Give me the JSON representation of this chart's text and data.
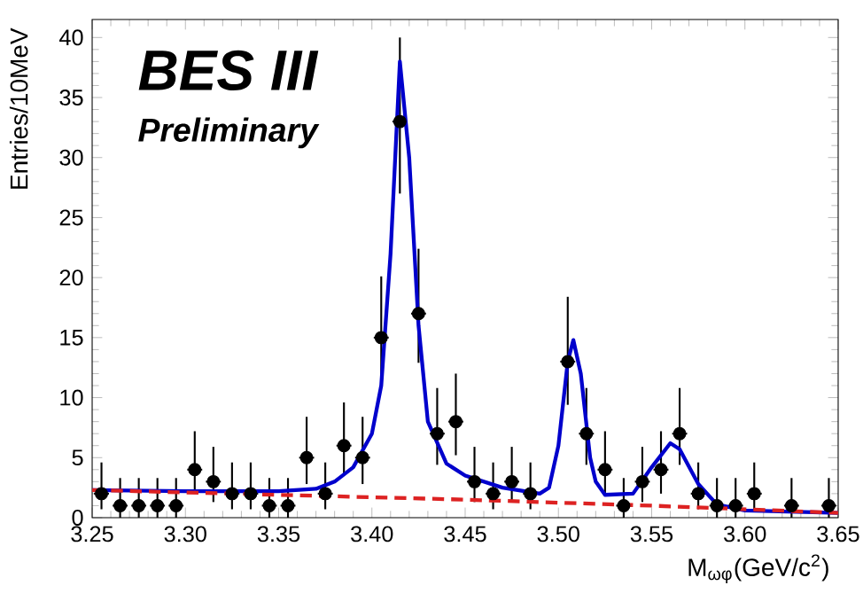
{
  "chart_data": {
    "type": "scatter",
    "xlabel": "M$_{ωφ}$(GeV/c$^{2}$)",
    "ylabel": "Entries/10MeV",
    "annotations": [
      "BES III",
      "Preliminary"
    ],
    "marker": "circle",
    "xlim": [
      3.25,
      3.65
    ],
    "ylim": [
      0,
      41.5
    ],
    "xticks": [
      3.25,
      {
        "value": 3.3,
        "label": "3.30"
      },
      3.35,
      {
        "value": 3.4,
        "label": "3.40"
      },
      3.45,
      {
        "value": 3.5,
        "label": "3.50"
      },
      3.55,
      {
        "value": 3.6,
        "label": "3.60"
      },
      3.65
    ],
    "yticks": [
      0,
      5,
      10,
      15,
      20,
      25,
      30,
      35,
      40
    ],
    "series": [
      {
        "color": "#000000",
        "x": [
          3.255,
          3.265,
          3.275,
          3.285,
          3.295,
          3.305,
          3.315,
          3.325,
          3.335,
          3.345,
          3.355,
          3.365,
          3.375,
          3.385,
          3.395,
          3.405,
          3.415,
          3.425,
          3.435,
          3.445,
          3.455,
          3.465,
          3.475,
          3.485,
          3.495,
          3.505,
          3.515,
          3.525,
          3.535,
          3.545,
          3.555,
          3.565,
          3.575,
          3.585,
          3.595,
          3.605,
          3.615,
          3.625,
          3.635,
          3.645
        ],
        "values": [
          2,
          1,
          1,
          1,
          1,
          4,
          3,
          2,
          2,
          1,
          1,
          5,
          2,
          6,
          5,
          15,
          33,
          17,
          7,
          8,
          3,
          2,
          3,
          2,
          null,
          13,
          7,
          4,
          1,
          3,
          4,
          7,
          2,
          1,
          1,
          2,
          null,
          1,
          null,
          1
        ],
        "errors": [
          [
            0.7,
            4.6
          ],
          [
            0,
            3.3
          ],
          [
            0,
            3.3
          ],
          [
            0,
            3.3
          ],
          [
            0,
            3.3
          ],
          [
            2,
            7.2
          ],
          [
            1.3,
            5.9
          ],
          [
            0.7,
            4.6
          ],
          [
            0.7,
            4.6
          ],
          [
            0,
            3.3
          ],
          [
            0,
            3.3
          ],
          [
            2.8,
            8.4
          ],
          [
            0.7,
            4.6
          ],
          [
            3.6,
            9.6
          ],
          [
            2.8,
            8.4
          ],
          [
            11.1,
            20.1
          ],
          [
            27,
            40
          ],
          [
            12.9,
            22.4
          ],
          [
            4.4,
            10.8
          ],
          [
            5.2,
            12
          ],
          [
            1.3,
            5.9
          ],
          [
            0.7,
            4.6
          ],
          [
            1.3,
            5.9
          ],
          [
            0.7,
            4.6
          ],
          null,
          [
            9.4,
            18.4
          ],
          [
            4.4,
            10.8
          ],
          [
            2,
            7.2
          ],
          [
            0,
            3.3
          ],
          [
            1.3,
            5.9
          ],
          [
            2,
            7.2
          ],
          [
            4.4,
            10.8
          ],
          [
            0.7,
            4.6
          ],
          [
            0,
            3.3
          ],
          [
            0,
            3.3
          ],
          [
            0.7,
            4.6
          ],
          null,
          [
            0,
            3.3
          ],
          null,
          [
            0,
            3.3
          ]
        ],
        "xerrors": [
          0.004,
          0.004,
          0.004,
          0.004,
          0.004,
          0.004,
          0.004,
          0.004,
          0.004,
          0.004,
          0.004,
          0.004,
          0.004,
          0.004,
          0.004,
          0.004,
          0.004,
          0.004,
          0.004,
          0.004,
          0.004,
          0.004,
          0.004,
          0.004,
          null,
          0.004,
          0.004,
          0.004,
          0.004,
          0.004,
          0.004,
          0.004,
          0.004,
          0.004,
          0.004,
          0.004,
          null,
          0.004,
          null,
          0.004
        ]
      },
      {
        "type": "line",
        "color": "#0000cc",
        "line_style": "solid",
        "marker": "none",
        "x": [
          3.25,
          3.3,
          3.35,
          3.37,
          3.38,
          3.39,
          3.4,
          3.405,
          3.41,
          3.415,
          3.42,
          3.425,
          3.43,
          3.44,
          3.45,
          3.47,
          3.49,
          3.495,
          3.5,
          3.505,
          3.508,
          3.512,
          3.517,
          3.52,
          3.525,
          3.54,
          3.55,
          3.56,
          3.565,
          3.575,
          3.585,
          3.6,
          3.65
        ],
        "values": [
          2.3,
          2.2,
          2.2,
          2.4,
          3,
          4.2,
          7,
          11,
          22,
          38,
          30,
          16,
          8,
          4.5,
          3.5,
          2.5,
          2,
          2.5,
          6,
          13,
          14.8,
          12,
          5,
          3,
          1.9,
          2,
          4.2,
          6.2,
          5.7,
          2.8,
          1.1,
          0.6,
          0.4
        ]
      },
      {
        "type": "line",
        "color": "#dd2222",
        "line_style": "dashed",
        "marker": "none",
        "x": [
          3.25,
          3.35,
          3.45,
          3.55,
          3.65
        ],
        "values": [
          2.3,
          1.9,
          1.5,
          1.0,
          0.4
        ]
      }
    ]
  }
}
